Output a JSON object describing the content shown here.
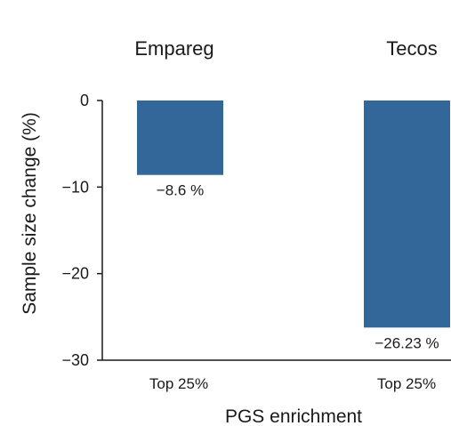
{
  "chart_data": {
    "type": "bar",
    "xlabel": "PGS enrichment",
    "ylabel": "Sample size change (%)",
    "ylim": [
      -30,
      0
    ],
    "yticks": [
      0,
      -10,
      -20,
      -30
    ],
    "ytick_labels": [
      "0",
      "−10",
      "−20",
      "−30"
    ],
    "grid": false,
    "bar_color": "#336699",
    "panels": [
      {
        "title": "Empareg",
        "categories": [
          "Top 25%"
        ],
        "values": [
          -8.6
        ],
        "data_labels": [
          "−8.6 %"
        ]
      },
      {
        "title": "Tecos",
        "categories": [
          "Top 25%"
        ],
        "values": [
          -26.23
        ],
        "data_labels": [
          "−26.23 %"
        ]
      }
    ]
  }
}
